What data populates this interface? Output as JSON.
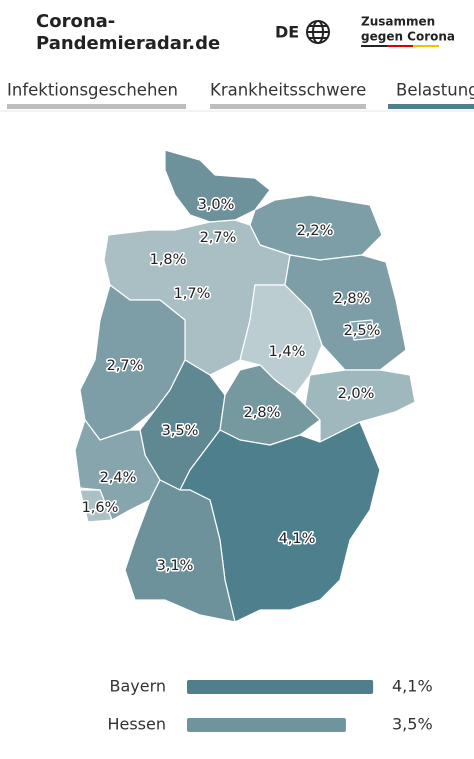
{
  "header": {
    "title_lines": [
      "Corona-",
      "Pandemieradar.de"
    ],
    "language": "DE",
    "logo_lines": [
      "Zusammen",
      "gegen Corona"
    ]
  },
  "tabs": [
    "Infektionsgeschehen",
    "Krankheitsschwere",
    "Belastung"
  ],
  "map": {
    "labels": [
      "3,0%",
      "2,7%",
      "2,2%",
      "1,8%",
      "1,7%",
      "2,8%",
      "2,5%",
      "1,4%",
      "2,7%",
      "2,0%",
      "3,5%",
      "2,8%",
      "2,4%",
      "1,6%",
      "4,1%",
      "3,1%"
    ]
  },
  "bars": [
    {
      "name": "Bayern",
      "value": "4,1%"
    },
    {
      "name": "Hessen",
      "value": "3,5%"
    }
  ]
}
